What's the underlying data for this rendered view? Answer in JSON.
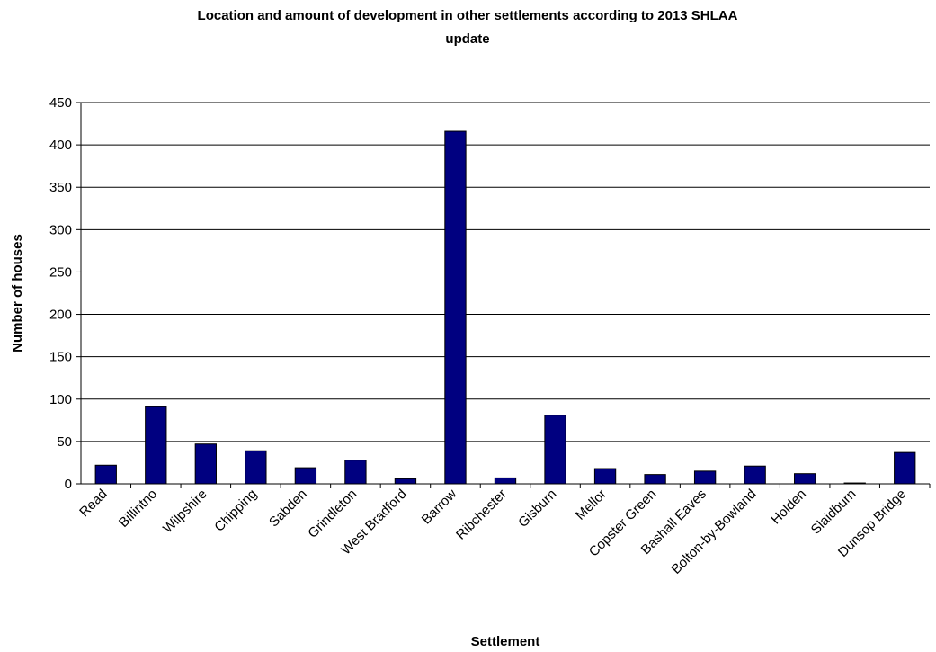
{
  "chart_data": {
    "type": "bar",
    "title_line1": "Location and amount of development in other settlements according to 2013 SHLAA",
    "title_line2": "update",
    "xlabel": "Settlement",
    "ylabel": "Number of houses",
    "ylim": [
      0,
      450
    ],
    "yticks": [
      0,
      50,
      100,
      150,
      200,
      250,
      300,
      350,
      400,
      450
    ],
    "grid": true,
    "legend": "none",
    "bar_color": "#000080",
    "categories": [
      "Read",
      "Billintno",
      "Wilpshire",
      "Chipping",
      "Sabden",
      "Grindleton",
      "West Bradford",
      "Barrow",
      "Ribchester",
      "Gisburn",
      "Mellor",
      "Copster Green",
      "Bashall Eaves",
      "Bolton-by-Bowland",
      "Holden",
      "Slaidburn",
      "Dunsop Bridge"
    ],
    "values": [
      22,
      91,
      47,
      39,
      19,
      28,
      6,
      416,
      7,
      81,
      18,
      11,
      15,
      21,
      12,
      1,
      37
    ]
  }
}
